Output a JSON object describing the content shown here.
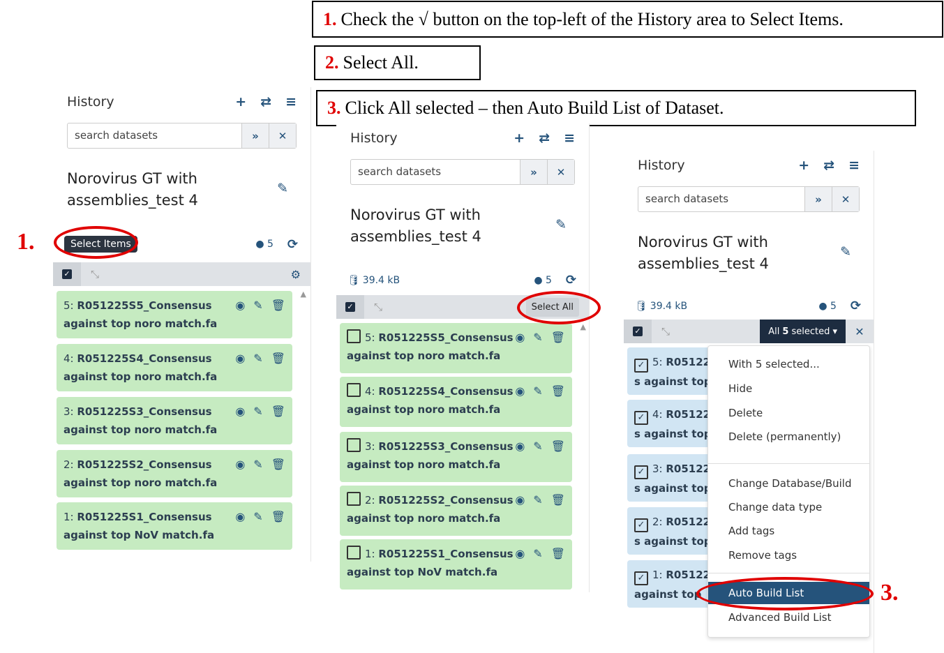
{
  "callouts": [
    {
      "num": "1.",
      "text": "Check the √ button on the top-left of the History  area to Select Items."
    },
    {
      "num": "2.",
      "text": "Select All."
    },
    {
      "num": "3.",
      "text": "Click All selected – then Auto Build List of Dataset."
    }
  ],
  "steps": [
    "1.",
    "2.",
    "3."
  ],
  "history": {
    "label": "History",
    "icons": [
      "plus-icon",
      "switch-icon",
      "menu-icon"
    ],
    "search_placeholder": "search datasets",
    "title": "Norovirus GT with assemblies_test 4",
    "size": "39.4 kB",
    "count": "5"
  },
  "panel1": {
    "tooltip": "Select Items",
    "items": [
      {
        "num": "5:",
        "name": "R051225S5_Consensus against top noro match.fa"
      },
      {
        "num": "4:",
        "name": "R051225S4_Consensus against top noro match.fa"
      },
      {
        "num": "3:",
        "name": "R051225S3_Consensus against top noro match.fa"
      },
      {
        "num": "2:",
        "name": "R051225S2_Consensus against top noro match.fa"
      },
      {
        "num": "1:",
        "name": "R051225S1_Consensus against top NoV match.fa"
      }
    ]
  },
  "panel2": {
    "select_all": "Select All"
  },
  "panel3": {
    "all_selected_prefix": "All",
    "all_selected_count": "5",
    "all_selected_suffix": "selected",
    "item_names": [
      "R05122",
      "R05122",
      "R05122",
      "R05122",
      "R05122"
    ],
    "item_lines": [
      "s against top",
      "s against top",
      "s against top",
      "s against top",
      "against top"
    ],
    "menu": [
      "With 5 selected...",
      "Hide",
      "Delete",
      "Delete (permanently)",
      "Change Database/Build",
      "Change data type",
      "Add tags",
      "Remove tags",
      "Auto Build List",
      "Advanced Build List"
    ]
  },
  "colors": {
    "ok_item": "#c6ebc1",
    "selected_item": "#d1e5f3",
    "accent": "#25537b",
    "highlight": "#e00000",
    "dark": "#1d2c40"
  }
}
